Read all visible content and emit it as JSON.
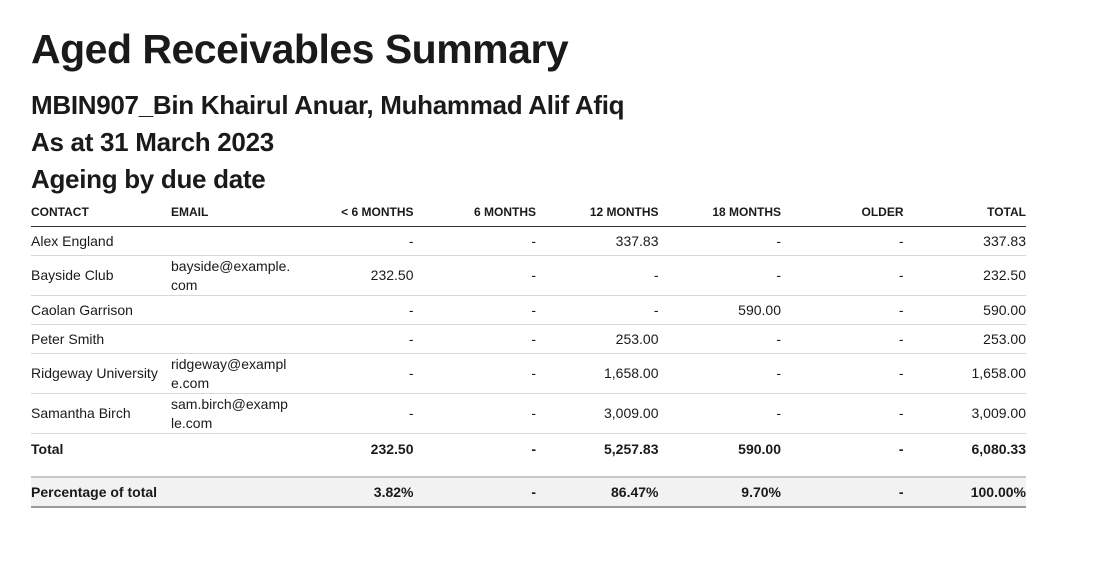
{
  "report": {
    "title": "Aged Receivables Summary",
    "organisation": "MBIN907_Bin Khairul Anuar, Muhammad Alif Afiq",
    "as_at": "As at 31 March 2023",
    "ageing": "Ageing by due date"
  },
  "table": {
    "headers": {
      "contact": "CONTACT",
      "email": "EMAIL",
      "lt6": "< 6 MONTHS",
      "m6": "6 MONTHS",
      "m12": "12 MONTHS",
      "m18": "18 MONTHS",
      "older": "OLDER",
      "total": "TOTAL"
    },
    "rows": [
      {
        "contact": "Alex England",
        "email": "",
        "lt6": "-",
        "m6": "-",
        "m12": "337.83",
        "m18": "-",
        "older": "-",
        "total": "337.83"
      },
      {
        "contact": "Bayside Club",
        "email": "bayside@example.com",
        "lt6": "232.50",
        "m6": "-",
        "m12": "-",
        "m18": "-",
        "older": "-",
        "total": "232.50"
      },
      {
        "contact": "Caolan Garrison",
        "email": "",
        "lt6": "-",
        "m6": "-",
        "m12": "-",
        "m18": "590.00",
        "older": "-",
        "total": "590.00"
      },
      {
        "contact": "Peter Smith",
        "email": "",
        "lt6": "-",
        "m6": "-",
        "m12": "253.00",
        "m18": "-",
        "older": "-",
        "total": "253.00"
      },
      {
        "contact": "Ridgeway University",
        "email": "ridgeway@example.com",
        "lt6": "-",
        "m6": "-",
        "m12": "1,658.00",
        "m18": "-",
        "older": "-",
        "total": "1,658.00"
      },
      {
        "contact": "Samantha Birch",
        "email": "sam.birch@example.com",
        "lt6": "-",
        "m6": "-",
        "m12": "3,009.00",
        "m18": "-",
        "older": "-",
        "total": "3,009.00"
      }
    ],
    "total": {
      "label": "Total",
      "lt6": "232.50",
      "m6": "-",
      "m12": "5,257.83",
      "m18": "590.00",
      "older": "-",
      "total": "6,080.33"
    },
    "percentage": {
      "label": "Percentage of total",
      "lt6": "3.82%",
      "m6": "-",
      "m12": "86.47%",
      "m18": "9.70%",
      "older": "-",
      "total": "100.00%"
    }
  }
}
